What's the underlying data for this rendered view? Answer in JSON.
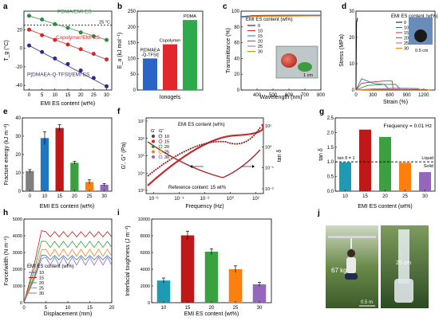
{
  "colors": {
    "green": "#2e8b3e",
    "red": "#d62728",
    "navy": "#2c2c8c",
    "blue": "#1f77c4",
    "gray": "#7f7f7f",
    "orange": "#ff7f0e",
    "purple": "#9467bd",
    "darkred": "#c01818",
    "lightgreen": "#3aa040",
    "teal": "#1f9ab5",
    "pdma": "#2eaa4c",
    "copoly": "#e3262d",
    "pdmaea": "#2b64c6"
  },
  "chart_data": [
    {
      "panel": "a",
      "type": "scatter",
      "xlabel": "EMI ES content (wt%)",
      "ylabel": "T_g (°C)",
      "xlim": [
        -2,
        32
      ],
      "ylim": [
        -45,
        40
      ],
      "xticks": [
        "0",
        "5",
        "10",
        "15",
        "20",
        "25",
        "30"
      ],
      "yticks": [
        "-40",
        "-20",
        "0",
        "20"
      ],
      "series": [
        {
          "name": "PDMA/EMI ES",
          "x": [
            0,
            5,
            10,
            15,
            20,
            25,
            30
          ],
          "y": [
            35,
            31,
            26,
            22,
            17,
            13,
            9
          ]
        },
        {
          "name": "Copolymer/EMI ES",
          "x": [
            0,
            5,
            10,
            15,
            20,
            25,
            30
          ],
          "y": [
            20,
            14,
            9,
            4,
            -1,
            -6,
            -12
          ]
        },
        {
          "name": "P[DMAEA-Q-TFSI]/EMI ES",
          "x": [
            0,
            5,
            10,
            15,
            20,
            25,
            30
          ],
          "y": [
            3,
            -4,
            -11,
            -17,
            -24,
            -32,
            -41
          ]
        }
      ],
      "annotation": "25 °C",
      "reference_line": 25
    },
    {
      "panel": "b",
      "type": "bar",
      "xlabel": "Ionogels",
      "ylabel": "E_a (kJ mol⁻¹)",
      "ylim": [
        0,
        250
      ],
      "yticks": [
        "0",
        "50",
        "100",
        "150",
        "200",
        "250"
      ],
      "categories": [
        "P[DMAEA\n-Q-TFSI]",
        "Copolymer",
        "PDMA"
      ],
      "values": [
        100,
        145,
        222
      ]
    },
    {
      "panel": "c",
      "type": "line",
      "xlabel": "Wavelength (nm)",
      "ylabel": "Transmittance (%)",
      "xlim": [
        300,
        800
      ],
      "ylim": [
        0,
        100
      ],
      "xticks": [
        "400",
        "500",
        "600",
        "700",
        "800"
      ],
      "yticks": [
        "0",
        "20",
        "40",
        "60",
        "80",
        "100"
      ],
      "legend_title": "EMI ES content (wt%)",
      "series_names": [
        "0",
        "10",
        "15",
        "20",
        "25",
        "30"
      ],
      "values_at_800nm": [
        95,
        95,
        95,
        94,
        94,
        94
      ],
      "scale_label": "1 cm"
    },
    {
      "panel": "d",
      "type": "line",
      "xlabel": "Strain (%)",
      "ylabel": "Stress (MPa)",
      "xlim": [
        0,
        1400
      ],
      "ylim": [
        0,
        35
      ],
      "xticks": [
        "0",
        "300",
        "600",
        "900",
        "1200"
      ],
      "yticks": [
        "0",
        "10",
        "20",
        "30"
      ],
      "legend_title": "EMI ES content (wt%)",
      "series_names": [
        "0",
        "10",
        "15",
        "20",
        "25",
        "30"
      ],
      "series": [
        {
          "name": "0",
          "x": [
            0,
            10,
            30
          ],
          "y": [
            0,
            30,
            32
          ]
        },
        {
          "name": "10",
          "x": [
            0,
            100,
            300,
            500,
            600
          ],
          "y": [
            0,
            5,
            3,
            2.5,
            0
          ]
        },
        {
          "name": "15",
          "x": [
            0,
            100,
            300,
            500,
            640,
            660
          ],
          "y": [
            0,
            3,
            3.6,
            4,
            4,
            0
          ]
        },
        {
          "name": "20",
          "x": [
            0,
            200,
            500,
            700,
            800
          ],
          "y": [
            0,
            2,
            2.5,
            2.5,
            0
          ]
        },
        {
          "name": "25",
          "x": [
            0,
            300,
            700,
            1100,
            1150
          ],
          "y": [
            0,
            0.5,
            0.8,
            0.7,
            0
          ]
        },
        {
          "name": "30",
          "x": [
            0,
            400,
            900,
            1250,
            1300
          ],
          "y": [
            0,
            0.3,
            0.4,
            0.3,
            0
          ]
        }
      ],
      "inset_label": "0.5 cm"
    },
    {
      "panel": "e",
      "type": "bar",
      "xlabel": "EMI ES content (wt%)",
      "ylabel": "Fracture energy (kJ m⁻²)",
      "ylim": [
        0,
        40
      ],
      "yticks": [
        "0",
        "10",
        "20",
        "30",
        "40"
      ],
      "categories": [
        "0",
        "10",
        "15",
        "20",
        "25",
        "30"
      ],
      "values": [
        11,
        29,
        34.5,
        15.5,
        5,
        3.5
      ],
      "errors": [
        0.8,
        3.5,
        1.8,
        0.8,
        1.2,
        0.7
      ]
    },
    {
      "panel": "f",
      "type": "line",
      "xlabel": "Frequency (Hz)",
      "ylabel": "G', G'' (Pa)",
      "y2label": "tan δ",
      "xticks": [
        "10⁻⁶",
        "10⁻⁴",
        "10⁻²",
        "10⁰",
        "10²"
      ],
      "yticks": [
        "10³",
        "10⁴",
        "10⁵",
        "10⁶",
        "10⁷"
      ],
      "y2ticks": [
        "10⁻²",
        "10⁻¹",
        "10⁰",
        "10¹"
      ],
      "legend_title": "EMI ES content (wt%)",
      "legend_header": [
        "G'",
        "G''"
      ],
      "series_names": [
        "10",
        "15",
        "20",
        "25",
        "30"
      ],
      "note": "Reference content: 15 wt%"
    },
    {
      "panel": "g",
      "type": "bar",
      "xlabel": "EMI ES content (wt%)",
      "ylabel": "tan δ",
      "ylim": [
        0,
        2.5
      ],
      "yticks": [
        "0.0",
        "0.5",
        "1.0",
        "1.5",
        "2.0",
        "2.5"
      ],
      "categories": [
        "10",
        "15",
        "20",
        "25",
        "30"
      ],
      "values": [
        0.98,
        2.1,
        1.85,
        0.97,
        0.65
      ],
      "annotation": "Frequency = 0.01 Hz",
      "reference_line": 1.0,
      "ref_label": "tan δ = 1",
      "zone_labels": [
        "Liquid",
        "Solid"
      ]
    },
    {
      "panel": "h",
      "type": "line",
      "xlabel": "Displacement (mm)",
      "ylabel": "Force/width (N m⁻¹)",
      "xlim": [
        0,
        20
      ],
      "ylim": [
        0,
        5000
      ],
      "xticks": [
        "0",
        "5",
        "10",
        "15",
        "20"
      ],
      "yticks": [
        "0",
        "1000",
        "2000",
        "3000",
        "4000",
        "5000"
      ],
      "legend_title": "EMI ES content (wt%)",
      "series_names": [
        "10",
        "15",
        "20",
        "25",
        "30"
      ],
      "plateau_values": [
        2700,
        4100,
        3500,
        3000,
        2500
      ]
    },
    {
      "panel": "i",
      "type": "bar",
      "xlabel": "EMI ES content (wt%)",
      "ylabel": "Interfacial toughness (J m⁻²)",
      "ylim": [
        0,
        10000
      ],
      "yticks": [
        "0",
        "2000",
        "4000",
        "6000",
        "8000",
        "10000"
      ],
      "categories": [
        "10",
        "15",
        "20",
        "25",
        "30"
      ],
      "values": [
        2650,
        8050,
        6100,
        4000,
        2200
      ],
      "errors": [
        300,
        500,
        350,
        400,
        250
      ]
    },
    {
      "panel": "j",
      "type": "photo",
      "labels": [
        "67 kg",
        "25 cm",
        "0.5 m"
      ]
    }
  ],
  "panel_letters": [
    "a",
    "b",
    "c",
    "d",
    "e",
    "f",
    "g",
    "h",
    "i",
    "j"
  ]
}
